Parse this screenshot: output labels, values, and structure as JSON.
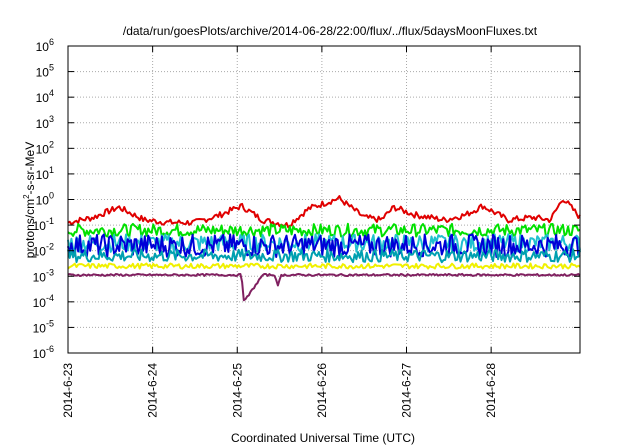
{
  "chart_data": {
    "type": "line",
    "title": "/data/run/goesPlots/archive/2014-06-28/22:00/flux/../flux/5daysMoonFluxes.txt",
    "xlabel": "Coordinated Universal Time (UTC)",
    "ylabel": {
      "main": "protons/cm",
      "sup": "2",
      "rest": "-s-sr-MeV"
    },
    "x_range": [
      0,
      6.05
    ],
    "x_ticks": [
      {
        "x": 0,
        "label": "2014-6-23"
      },
      {
        "x": 1,
        "label": "2014-6-24"
      },
      {
        "x": 2,
        "label": "2014-6-25"
      },
      {
        "x": 3,
        "label": "2014-6-26"
      },
      {
        "x": 4,
        "label": "2014-6-27"
      },
      {
        "x": 5,
        "label": "2014-6-28"
      }
    ],
    "y_scale": "log",
    "ylim_exp": [
      -6,
      6
    ],
    "y_ticks": [
      {
        "exp": 6,
        "label": "6"
      },
      {
        "exp": 5,
        "label": "5"
      },
      {
        "exp": 4,
        "label": "4"
      },
      {
        "exp": 3,
        "label": "3"
      },
      {
        "exp": 2,
        "label": "2"
      },
      {
        "exp": 1,
        "label": "1"
      },
      {
        "exp": 0,
        "label": "0"
      },
      {
        "exp": -1,
        "label": "-1"
      },
      {
        "exp": -2,
        "label": "-2"
      },
      {
        "exp": -3,
        "label": "-3"
      },
      {
        "exp": -4,
        "label": "-4"
      },
      {
        "exp": -5,
        "label": "-5"
      },
      {
        "exp": -6,
        "label": "-6"
      }
    ],
    "y_tick_base": "10",
    "grid": true,
    "legend": "none",
    "series": [
      {
        "color": "#e00000",
        "x": [
          0,
          0.3,
          0.6,
          0.9,
          1.2,
          1.5,
          1.8,
          2.05,
          2.3,
          2.6,
          2.85,
          3.2,
          3.5,
          3.7,
          3.85,
          4.1,
          4.45,
          4.7,
          4.9,
          5.2,
          5.5,
          5.7,
          5.85,
          6.05
        ],
        "log": [
          -0.9,
          -0.7,
          -0.3,
          -0.8,
          -0.9,
          -0.9,
          -0.6,
          -0.25,
          -0.8,
          -1.0,
          -0.35,
          0.05,
          -0.7,
          -0.8,
          -0.3,
          -0.6,
          -0.8,
          -0.6,
          -0.25,
          -0.8,
          -0.7,
          -0.8,
          0.05,
          -0.7
        ],
        "noise": 0.12
      },
      {
        "color": "#00e000",
        "base": -1.2,
        "noise": 0.25,
        "x": [
          0,
          6.05
        ]
      },
      {
        "color": "#20c0d0",
        "base": -1.7,
        "noise": 0.35,
        "x": [
          0,
          6.05
        ]
      },
      {
        "color": "#0000d8",
        "base": -1.8,
        "noise": 0.45,
        "x": [
          0,
          6.05
        ]
      },
      {
        "color": "#00a0b0",
        "base": -2.2,
        "noise": 0.25,
        "x": [
          0,
          6.05
        ]
      },
      {
        "color": "#f0f000",
        "base": -2.6,
        "noise": 0.1,
        "x": [
          0,
          6.05
        ]
      },
      {
        "color": "#802060",
        "base": -2.95,
        "noise": 0.04,
        "x": [
          0,
          1.0,
          2.0,
          2.05,
          2.08,
          2.3,
          2.45,
          2.48,
          2.52,
          2.7,
          3.6,
          4.8,
          6.05
        ],
        "log": [
          -2.95,
          -2.95,
          -2.95,
          -2.95,
          -4.0,
          -2.95,
          -2.95,
          -3.4,
          -2.95,
          -2.95,
          -2.95,
          -2.95,
          -2.95
        ],
        "point_noise": true
      }
    ]
  }
}
